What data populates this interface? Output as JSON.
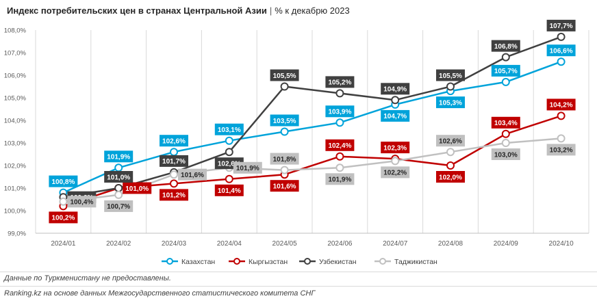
{
  "header": {
    "title": "Индекс потребительских цен в странах Центральной Азии",
    "separator": "|",
    "subtitle": "% к декабрю 2023"
  },
  "chart_data": {
    "type": "line",
    "title": "Индекс потребительских цен в странах Центральной Азии",
    "subtitle": "% к декабрю 2023",
    "x": [
      "2024/01",
      "2024/02",
      "2024/03",
      "2024/04",
      "2024/05",
      "2024/06",
      "2024/07",
      "2024/08",
      "2024/09",
      "2024/10"
    ],
    "ylim": [
      99.0,
      108.0
    ],
    "yticks": [
      99.0,
      100.0,
      101.0,
      102.0,
      103.0,
      104.0,
      105.0,
      106.0,
      107.0,
      108.0
    ],
    "ytick_labels": [
      "99,0%",
      "100,0%",
      "101,0%",
      "102,0%",
      "103,0%",
      "104,0%",
      "105,0%",
      "106,0%",
      "107,0%",
      "108,0%"
    ],
    "grid": "vertical",
    "legend_position": "bottom",
    "series": [
      {
        "name": "Казахстан",
        "color": "#00a3da",
        "values": [
          100.8,
          101.9,
          102.6,
          103.1,
          103.5,
          103.9,
          104.7,
          105.3,
          105.7,
          106.6
        ],
        "labels": [
          "100,8%",
          "101,9%",
          "102,6%",
          "103,1%",
          "103,5%",
          "103,9%",
          "104,7%",
          "105,3%",
          "105,7%",
          "106,6%"
        ],
        "label_pos": [
          "above",
          "above",
          "above",
          "above",
          "above",
          "above",
          "below",
          "below",
          "above",
          "above"
        ]
      },
      {
        "name": "Кыргызстан",
        "color": "#c00000",
        "values": [
          100.2,
          101.0,
          101.2,
          101.4,
          101.6,
          102.4,
          102.3,
          102.0,
          103.4,
          104.2
        ],
        "labels": [
          "100,2%",
          "101,0%",
          "101,2%",
          "101,4%",
          "101,6%",
          "102,4%",
          "102,3%",
          "102,0%",
          "103,4%",
          "104,2%"
        ],
        "label_pos": [
          "below",
          "right",
          "below",
          "below",
          "below",
          "above",
          "above",
          "below",
          "above",
          "above"
        ]
      },
      {
        "name": "Узбекистан",
        "color": "#404040",
        "values": [
          100.6,
          101.0,
          101.7,
          102.6,
          105.5,
          105.2,
          104.9,
          105.5,
          106.8,
          107.7
        ],
        "labels": [
          "100,6%",
          "101,0%",
          "101,7%",
          "102,6%",
          "105,5%",
          "105,2%",
          "104,9%",
          "105,5%",
          "106,8%",
          "107,7%"
        ],
        "label_pos": [
          "right",
          "above",
          "above",
          "below",
          "above",
          "above",
          "above",
          "above",
          "above",
          "above"
        ]
      },
      {
        "name": "Таджикистан",
        "color": "#c0c0c0",
        "values": [
          100.4,
          100.7,
          101.6,
          101.9,
          101.8,
          101.9,
          102.2,
          102.6,
          103.0,
          103.2
        ],
        "labels": [
          "100,4%",
          "100,7%",
          "101,6%",
          "101,9%",
          "101,8%",
          "101,9%",
          "102,2%",
          "102,6%",
          "103,0%",
          "103,2%"
        ],
        "label_pos": [
          "right",
          "below",
          "right",
          "right",
          "above",
          "below",
          "below",
          "above",
          "below",
          "below"
        ]
      }
    ]
  },
  "footer": {
    "note": "Данные по Туркменистану не предоставлены.",
    "source": "Ranking.kz на основе данных Межгосударственного статистического комитета СНГ"
  }
}
